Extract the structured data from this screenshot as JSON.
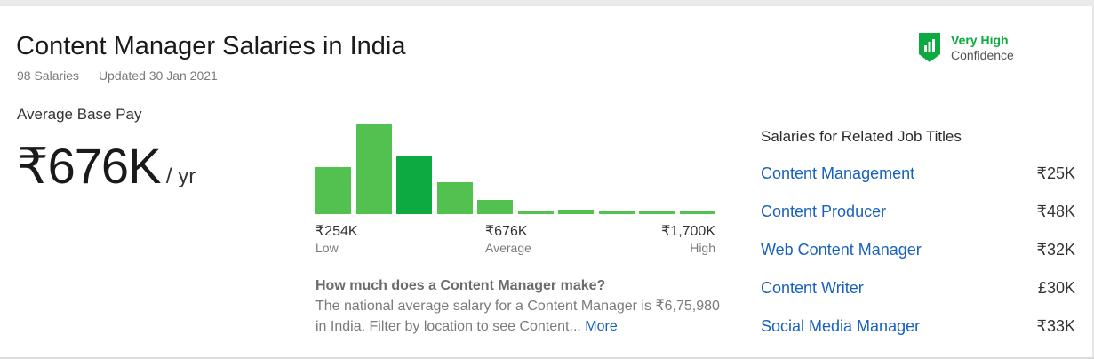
{
  "header": {
    "title": "Content Manager Salaries in India",
    "salary_count": "98 Salaries",
    "updated": "Updated 30 Jan 2021"
  },
  "confidence": {
    "level": "Very High",
    "label": "Confidence",
    "icon": "bar-chart-shield-icon",
    "color": "#0caa41"
  },
  "average_pay": {
    "label": "Average Base Pay",
    "amount": "₹676K",
    "unit": "/ yr"
  },
  "histogram": {
    "bar_levels": [
      0.52,
      1.0,
      0.65,
      0.36,
      0.16,
      0.04,
      0.05,
      0.03,
      0.04,
      0.03
    ],
    "active_index": 2,
    "colors": {
      "bar": "#53c150",
      "active": "#0caa41"
    },
    "low": {
      "value": "₹254K",
      "label": "Low"
    },
    "average": {
      "value": "₹676K",
      "label": "Average"
    },
    "high": {
      "value": "₹1,700K",
      "label": "High"
    }
  },
  "faq": {
    "question": "How much does a Content Manager make?",
    "answer": "The national average salary for a Content Manager is ₹6,75,980 in India. Filter by location to see Content...",
    "more_link": "More"
  },
  "related": {
    "title": "Salaries for Related Job Titles",
    "items": [
      {
        "name": "Content Management",
        "pay": "₹25K"
      },
      {
        "name": "Content Producer",
        "pay": "₹48K"
      },
      {
        "name": "Web Content Manager",
        "pay": "₹32K"
      },
      {
        "name": "Content Writer",
        "pay": "£30K"
      },
      {
        "name": "Social Media Manager",
        "pay": "₹33K"
      }
    ]
  },
  "colors": {
    "link": "#1861bf",
    "accent": "#0caa41"
  }
}
